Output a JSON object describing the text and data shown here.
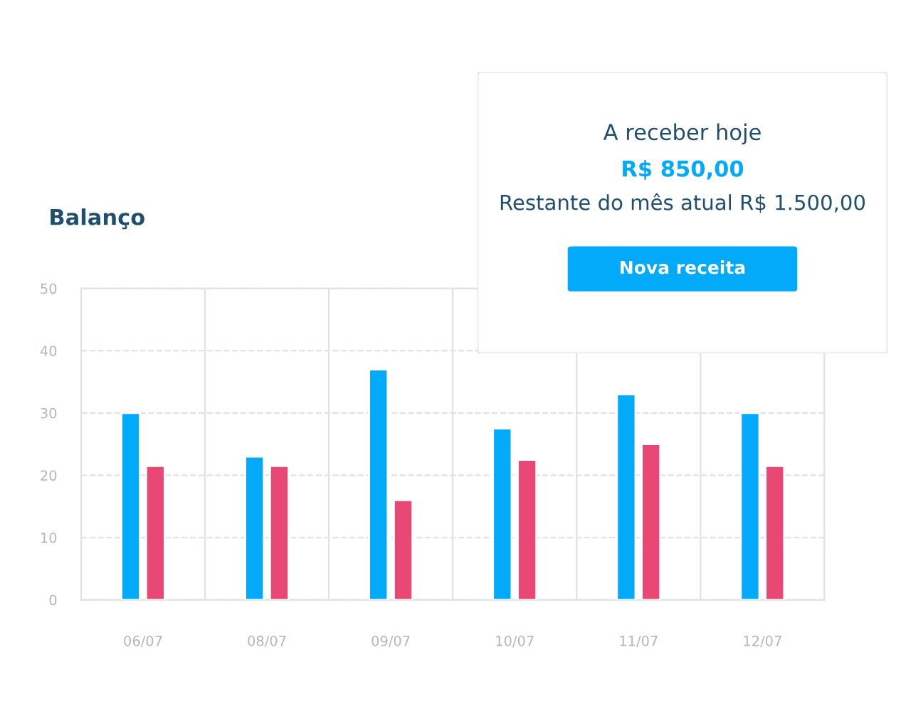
{
  "chart_data": [
    {
      "type": "bar",
      "title": "Balanço",
      "categories": [
        "06/07",
        "08/07",
        "09/07",
        "10/07",
        "11/07",
        "12/07"
      ],
      "series": [
        {
          "color": "#03aaf9",
          "values": [
            30,
            23,
            37,
            27.5,
            33,
            30
          ]
        },
        {
          "color": "#ea4874",
          "values": [
            21.5,
            21.5,
            16,
            22.5,
            25,
            21.5
          ]
        }
      ],
      "ylim": [
        0,
        50
      ],
      "yticks": [
        0,
        10,
        20,
        30,
        40,
        50
      ],
      "grid": true,
      "legend": false
    },
    {
      "type": "other",
      "title": "A receber hoje",
      "annotations": [
        "R$ 850,00",
        "Restante do mês atual R$ 1.500,00",
        "Nova receita"
      ]
    }
  ]
}
